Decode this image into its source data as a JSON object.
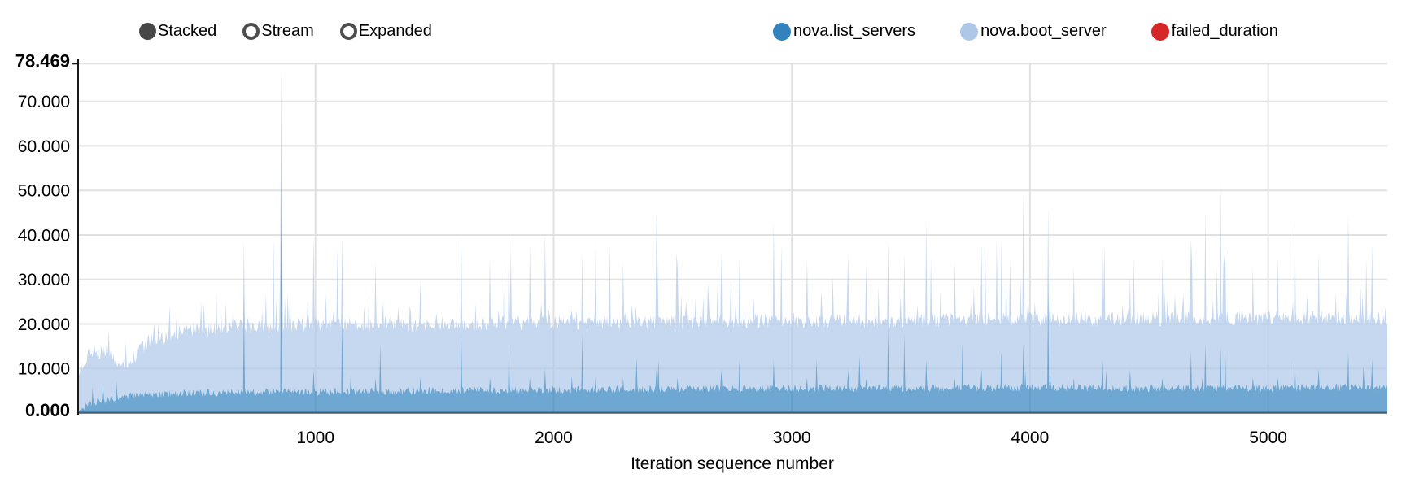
{
  "controls": {
    "items": [
      {
        "label": "Stacked",
        "selected": true
      },
      {
        "label": "Stream",
        "selected": false
      },
      {
        "label": "Expanded",
        "selected": false
      }
    ],
    "color": "#474747"
  },
  "legend": {
    "position": "top-right",
    "items": [
      {
        "label": "nova.list_servers",
        "color": "#3182bd"
      },
      {
        "label": "nova.boot_server",
        "color": "#aec7e8"
      },
      {
        "label": "failed_duration",
        "color": "#d62728"
      }
    ]
  },
  "chart_data": {
    "type": "area",
    "stack_mode": "stacked",
    "title": "",
    "xlabel": "Iteration sequence number",
    "ylabel": "",
    "xlim": [
      0,
      5500
    ],
    "ylim": [
      0,
      78.469
    ],
    "grid": true,
    "legend_position": "top",
    "x_ticks": [
      {
        "value": 1000,
        "label": "1000"
      },
      {
        "value": 2000,
        "label": "2000"
      },
      {
        "value": 3000,
        "label": "3000"
      },
      {
        "value": 4000,
        "label": "4000"
      },
      {
        "value": 5000,
        "label": "5000"
      }
    ],
    "y_ticks": [
      {
        "value": 0,
        "label": "0.000",
        "bold": true
      },
      {
        "value": 10,
        "label": "10.000",
        "bold": false
      },
      {
        "value": 20,
        "label": "20.000",
        "bold": false
      },
      {
        "value": 30,
        "label": "30.000",
        "bold": false
      },
      {
        "value": 40,
        "label": "40.000",
        "bold": false
      },
      {
        "value": 50,
        "label": "50.000",
        "bold": false
      },
      {
        "value": 60,
        "label": "60.000",
        "bold": false
      },
      {
        "value": 70,
        "label": "70.000",
        "bold": false
      },
      {
        "value": 78.469,
        "label": "78.469",
        "bold": true
      }
    ],
    "series": [
      {
        "name": "nova.list_servers",
        "color": "#3182bd",
        "fill_opacity": 0.7,
        "envelope": [
          [
            0,
            0.8
          ],
          [
            60,
            2.2
          ],
          [
            150,
            3.2
          ],
          [
            250,
            4.0
          ],
          [
            400,
            4.5
          ],
          [
            700,
            4.7
          ],
          [
            1000,
            4.8
          ],
          [
            1500,
            5.0
          ],
          [
            2000,
            5.3
          ],
          [
            2500,
            5.5
          ],
          [
            3000,
            5.6
          ],
          [
            3500,
            5.5
          ],
          [
            4000,
            5.8
          ],
          [
            4500,
            5.6
          ],
          [
            5000,
            5.7
          ],
          [
            5500,
            5.8
          ]
        ]
      },
      {
        "name": "nova.boot_server",
        "color": "#aec7e8",
        "fill_opacity": 0.7,
        "total_envelope": [
          [
            0,
            9
          ],
          [
            40,
            12.5
          ],
          [
            80,
            14
          ],
          [
            130,
            13
          ],
          [
            170,
            11
          ],
          [
            210,
            10.5
          ],
          [
            260,
            14
          ],
          [
            320,
            17
          ],
          [
            380,
            16.5
          ],
          [
            450,
            19
          ],
          [
            550,
            18.5
          ],
          [
            650,
            20
          ],
          [
            800,
            19.5
          ],
          [
            1000,
            20
          ],
          [
            1200,
            19.8
          ],
          [
            1500,
            20
          ],
          [
            1800,
            20.2
          ],
          [
            2100,
            20.4
          ],
          [
            2400,
            20.3
          ],
          [
            2700,
            20.6
          ],
          [
            3000,
            20.8
          ],
          [
            3300,
            20.7
          ],
          [
            3600,
            21
          ],
          [
            3900,
            21
          ],
          [
            4200,
            21
          ],
          [
            4500,
            21.2
          ],
          [
            4800,
            21.3
          ],
          [
            5100,
            21.4
          ],
          [
            5400,
            21.5
          ],
          [
            5500,
            21.3
          ]
        ]
      },
      {
        "name": "failed_duration",
        "color": "#d62728",
        "fill_opacity": 0.7,
        "values": []
      }
    ],
    "spikes": [
      [
        700,
        39,
        26
      ],
      [
        854,
        78.469,
        56
      ],
      [
        990,
        40,
        10
      ],
      [
        1110,
        40,
        22
      ],
      [
        1250,
        34,
        8
      ],
      [
        1440,
        30,
        8
      ],
      [
        1610,
        40,
        18
      ],
      [
        1730,
        35,
        8
      ],
      [
        1810,
        41,
        16
      ],
      [
        1900,
        38,
        8
      ],
      [
        1965,
        41,
        10
      ],
      [
        2120,
        36,
        18
      ],
      [
        2175,
        38,
        8
      ],
      [
        2290,
        34,
        8
      ],
      [
        2430,
        45.5,
        10
      ],
      [
        2520,
        33,
        8
      ],
      [
        2705,
        36,
        10
      ],
      [
        2780,
        35,
        12
      ],
      [
        2925,
        43.5,
        12
      ],
      [
        3065,
        35,
        8
      ],
      [
        3235,
        36,
        10
      ],
      [
        3310,
        34,
        8
      ],
      [
        3405,
        39,
        20
      ],
      [
        3470,
        36,
        18
      ],
      [
        3565,
        43.5,
        12
      ],
      [
        3685,
        34,
        8
      ],
      [
        3795,
        38,
        10
      ],
      [
        3880,
        39,
        14
      ],
      [
        3970,
        50,
        16
      ],
      [
        4075,
        46.5,
        28
      ],
      [
        4185,
        33,
        8
      ],
      [
        4305,
        37,
        12
      ],
      [
        4420,
        31,
        10
      ],
      [
        4555,
        35,
        8
      ],
      [
        4675,
        39,
        14
      ],
      [
        4735,
        46,
        16
      ],
      [
        4800,
        51.5,
        15
      ],
      [
        4820,
        37,
        14
      ],
      [
        4935,
        33,
        8
      ],
      [
        5040,
        35,
        8
      ],
      [
        5110,
        44,
        12
      ],
      [
        5210,
        36,
        10
      ],
      [
        5335,
        45,
        14
      ],
      [
        5435,
        38,
        12
      ]
    ]
  }
}
